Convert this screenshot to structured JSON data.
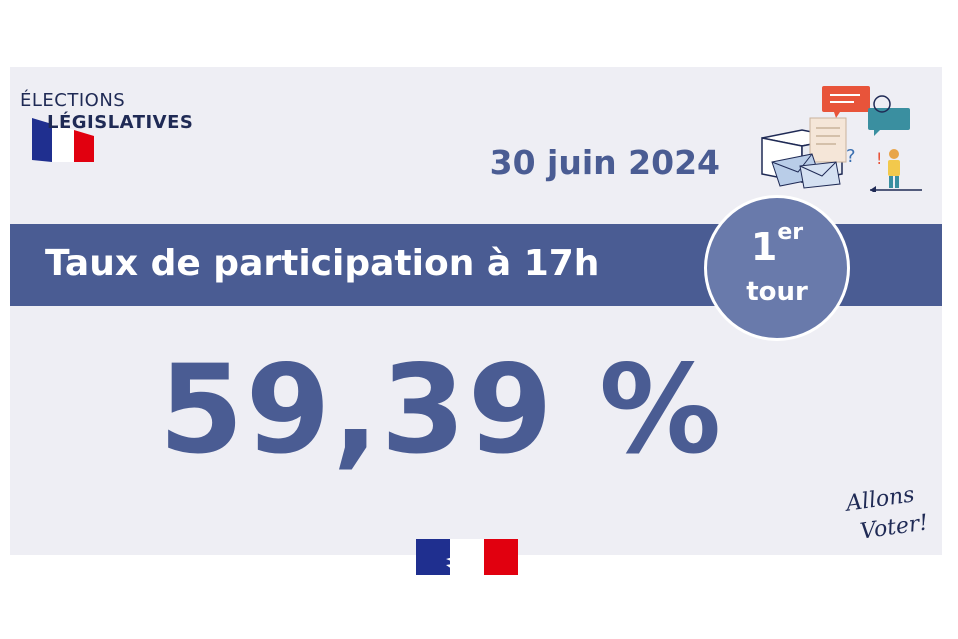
{
  "brand": {
    "line1": "ÉLECTIONS",
    "line2": "LÉGISLATIVES"
  },
  "date": "30 juin 2024",
  "banner": {
    "title": "Taux de participation à 17h"
  },
  "round": {
    "number": "1",
    "suffix": "er",
    "label": "tour"
  },
  "participation_rate": "59,39 %",
  "slogan": {
    "line1": "Allons",
    "line2": "Voter!"
  },
  "icons": {
    "flag": "french-flag-swoosh-icon",
    "illustration": "ballot-box-and-voter-illustration",
    "republic_logo": "marianne-republic-logo-icon"
  },
  "colors": {
    "navy": "#4a5c93",
    "badge": "#697aab",
    "background": "#eeeef4",
    "flag_blue": "#1f2f8f",
    "flag_red": "#e1000f"
  }
}
